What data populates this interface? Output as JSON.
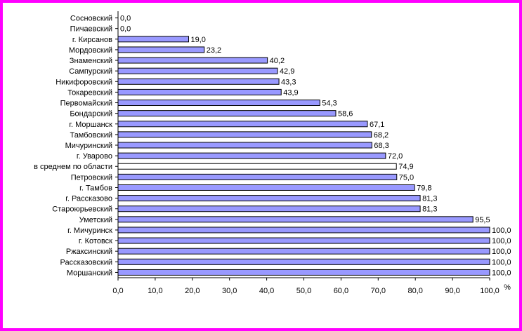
{
  "chart_data": {
    "type": "bar",
    "orientation": "horizontal",
    "categories": [
      "Сосновский",
      "Пичаевский",
      "г. Кирсанов",
      "Мордовский",
      "Знаменский",
      "Сампурский",
      "Никифоровский",
      "Токаревский",
      "Первомайский",
      "Бондарский",
      "г. Моршанск",
      "Тамбовский",
      "Мичуринский",
      "г.  Уварово",
      "в среднем по области",
      "Петровский",
      "г. Тамбов",
      "г. Рассказово",
      "Староюрьевский",
      "Уметский",
      "г. Мичуринск",
      "г. Котовск",
      "Ржаксинский",
      "Рассказовский",
      "Моршанский"
    ],
    "values": [
      0.0,
      0.0,
      19.0,
      23.2,
      40.2,
      42.9,
      43.3,
      43.9,
      54.3,
      58.6,
      67.1,
      68.2,
      68.3,
      72.0,
      74.9,
      75.0,
      79.8,
      81.3,
      81.3,
      95.5,
      100.0,
      100.0,
      100.0,
      100.0,
      100.0
    ],
    "value_labels": [
      "0,0",
      "0,0",
      "19,0",
      "23,2",
      "40,2",
      "42,9",
      "43,3",
      "43,9",
      "54,3",
      "58,6",
      "67,1",
      "68,2",
      "68,3",
      "72,0",
      "74,9",
      "75,0",
      "79,8",
      "81,3",
      "81,3",
      "95,5",
      "100,0",
      "100,0",
      "100,0",
      "100,0",
      "100,0"
    ],
    "highlight_category": "в среднем по области",
    "x_ticks": [
      "0,0",
      "10,0",
      "20,0",
      "30,0",
      "40,0",
      "50,0",
      "60,0",
      "70,0",
      "80,0",
      "90,0",
      "100,0"
    ],
    "xlim": [
      0,
      100
    ],
    "unit_label": "%",
    "title": "",
    "xlabel": "",
    "ylabel": "",
    "grid": false,
    "colors": {
      "bar_fill": "#9999ff",
      "highlight_fill": "#ffffff",
      "bar_stroke": "#000000",
      "frame": "#ff00ff"
    }
  }
}
